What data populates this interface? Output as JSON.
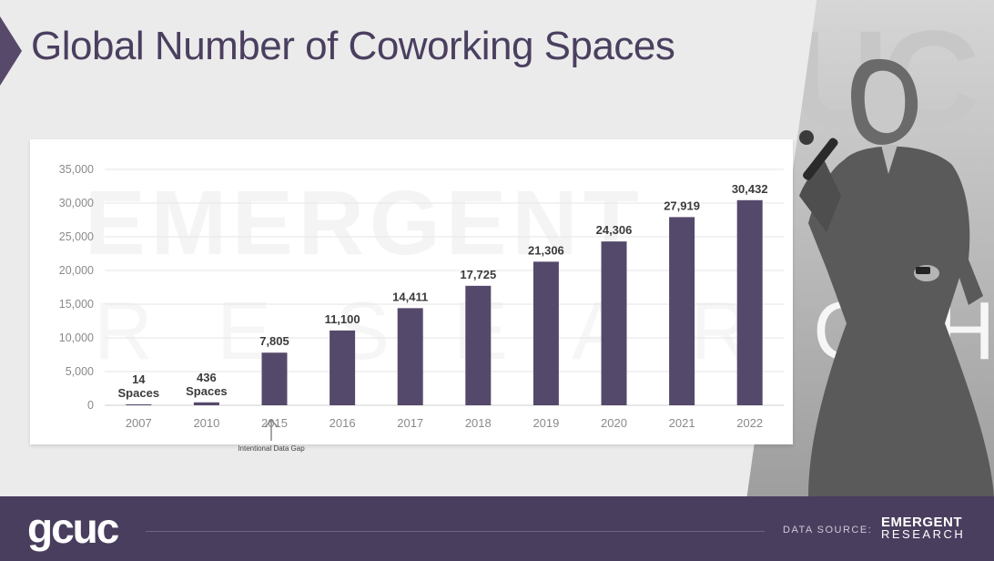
{
  "slide": {
    "title": "Global Number of Coworking Spaces",
    "gap_note": "Intentional Data Gap",
    "watermark": [
      "EMERGENT",
      "RESEARCH"
    ]
  },
  "footer": {
    "logo": "gcuc",
    "source_label": "DATA SOURCE:",
    "brand_line1": "EMERGENT",
    "brand_line2": "RESEARCH"
  },
  "colors": {
    "bar": "#55496b",
    "footer": "#4a3e5e",
    "title": "#4b3f60"
  },
  "chart_data": {
    "type": "bar",
    "title": "Global Number of Coworking Spaces",
    "xlabel": "",
    "ylabel": "",
    "categories": [
      "2007",
      "2010",
      "2015",
      "2016",
      "2017",
      "2018",
      "2019",
      "2020",
      "2021",
      "2022"
    ],
    "values": [
      14,
      436,
      7805,
      11100,
      14411,
      17725,
      21306,
      24306,
      27919,
      30432
    ],
    "data_labels": [
      [
        "14",
        "Spaces"
      ],
      [
        "436",
        "Spaces"
      ],
      [
        "7,805"
      ],
      [
        "11,100"
      ],
      [
        "14,411"
      ],
      [
        "17,725"
      ],
      [
        "21,306"
      ],
      [
        "24,306"
      ],
      [
        "27,919"
      ],
      [
        "30,432"
      ]
    ],
    "ylim": [
      0,
      35000
    ],
    "yticks": [
      0,
      5000,
      10000,
      15000,
      20000,
      25000,
      30000,
      35000
    ],
    "ytick_labels": [
      "0",
      "5,000",
      "10,000",
      "15,000",
      "20,000",
      "25,000",
      "30,000",
      "35,000"
    ],
    "grid": true,
    "legend": "none"
  }
}
